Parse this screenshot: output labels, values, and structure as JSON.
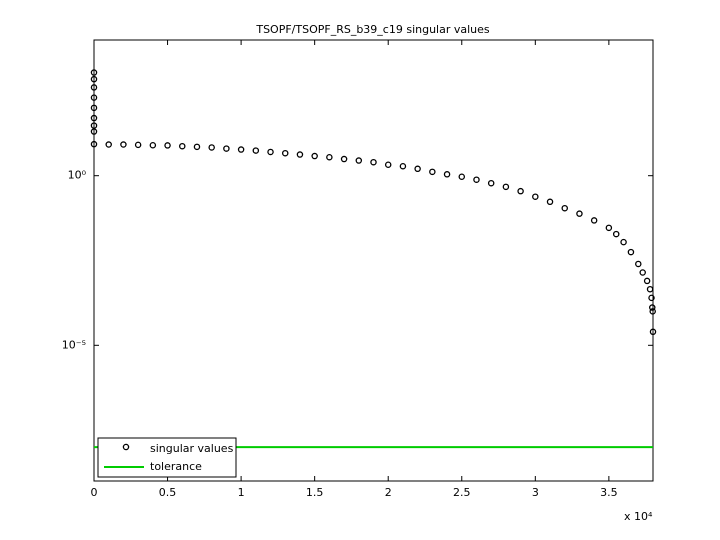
{
  "chart_data": {
    "type": "scatter",
    "title": "TSOPF/TSOPF_RS_b39_c19 singular values",
    "x_multiplier": "x 10⁴",
    "xlim": [
      0,
      38000
    ],
    "xticks": [
      {
        "value": 0,
        "label": "0"
      },
      {
        "value": 5000,
        "label": "0.5"
      },
      {
        "value": 10000,
        "label": "1"
      },
      {
        "value": 15000,
        "label": "1.5"
      },
      {
        "value": 20000,
        "label": "2"
      },
      {
        "value": 25000,
        "label": "2.5"
      },
      {
        "value": 30000,
        "label": "3"
      },
      {
        "value": 35000,
        "label": "3.5"
      }
    ],
    "ylim": [
      1e-09,
      10000
    ],
    "yticks": [
      {
        "value": 1,
        "label": "10⁰"
      },
      {
        "value": 1e-05,
        "label": "10⁻⁵"
      }
    ],
    "log_y": true,
    "grid": false,
    "legend": "lower left",
    "series": [
      {
        "name": "singular values",
        "color": "#000000",
        "marker": "circle",
        "x": [
          0,
          0,
          0,
          0,
          0,
          0,
          0,
          0,
          0,
          1000,
          2000,
          3000,
          4000,
          5000,
          6000,
          7000,
          8000,
          9000,
          10000,
          11000,
          12000,
          13000,
          14000,
          15000,
          16000,
          17000,
          18000,
          19000,
          20000,
          21000,
          22000,
          23000,
          24000,
          25000,
          26000,
          27000,
          28000,
          29000,
          30000,
          31000,
          32000,
          33000,
          34000,
          35000,
          35500,
          36000,
          36500,
          37000,
          37300,
          37600,
          37800,
          37900,
          37950,
          37980,
          38000
        ],
        "values": [
          1100,
          700,
          400,
          200,
          100,
          50,
          30,
          20,
          8.5,
          8.3,
          8.3,
          8.1,
          7.9,
          7.8,
          7.4,
          7.1,
          6.8,
          6.3,
          5.9,
          5.5,
          5.0,
          4.6,
          4.2,
          3.8,
          3.5,
          3.1,
          2.8,
          2.5,
          2.1,
          1.9,
          1.6,
          1.3,
          1.1,
          0.93,
          0.76,
          0.6,
          0.47,
          0.35,
          0.24,
          0.17,
          0.11,
          0.076,
          0.048,
          0.029,
          0.019,
          0.011,
          0.0056,
          0.0025,
          0.0014,
          0.00079,
          0.00045,
          0.00025,
          0.00013,
          0.0001,
          2.5e-05
        ]
      },
      {
        "name": "tolerance",
        "color": "#00cc00",
        "marker": "line",
        "values": [
          1e-08
        ]
      }
    ]
  }
}
